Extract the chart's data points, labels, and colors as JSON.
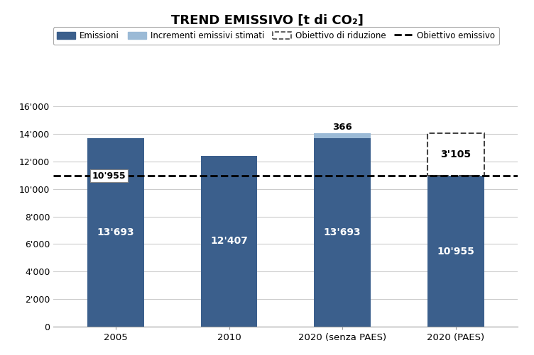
{
  "title": "TREND EMISSIVO [t di CO₂]",
  "categories": [
    "2005",
    "2010",
    "2020 (senza PAES)",
    "2020 (PAES)"
  ],
  "bar_values": [
    13693,
    12407,
    13693,
    10955
  ],
  "increments": [
    0,
    0,
    366,
    3105
  ],
  "bar_color": "#3B5F8C",
  "increment_color_solid": "#9BBAD6",
  "dashed_line_y": 10955,
  "ylim": [
    0,
    16000
  ],
  "yticks": [
    0,
    2000,
    4000,
    6000,
    8000,
    10000,
    12000,
    14000,
    16000
  ],
  "ytick_labels": [
    "0",
    "2'000",
    "4'000",
    "6'000",
    "8'000",
    "10'000",
    "12'000",
    "14'000",
    "16'000"
  ],
  "bar_labels": [
    "13'693",
    "12'407",
    "13'693",
    "10'955"
  ],
  "increment_labels": [
    "",
    "",
    "366",
    "3'105"
  ],
  "annotation_2005": "10'955",
  "legend_entries": [
    "Emissioni",
    "Incrementi emissivi stimati",
    "Obiettivo di riduzione",
    "Obiettivo emissivo"
  ],
  "background_color": "#FFFFFF",
  "grid_color": "#CCCCCC",
  "bar_width": 0.5
}
